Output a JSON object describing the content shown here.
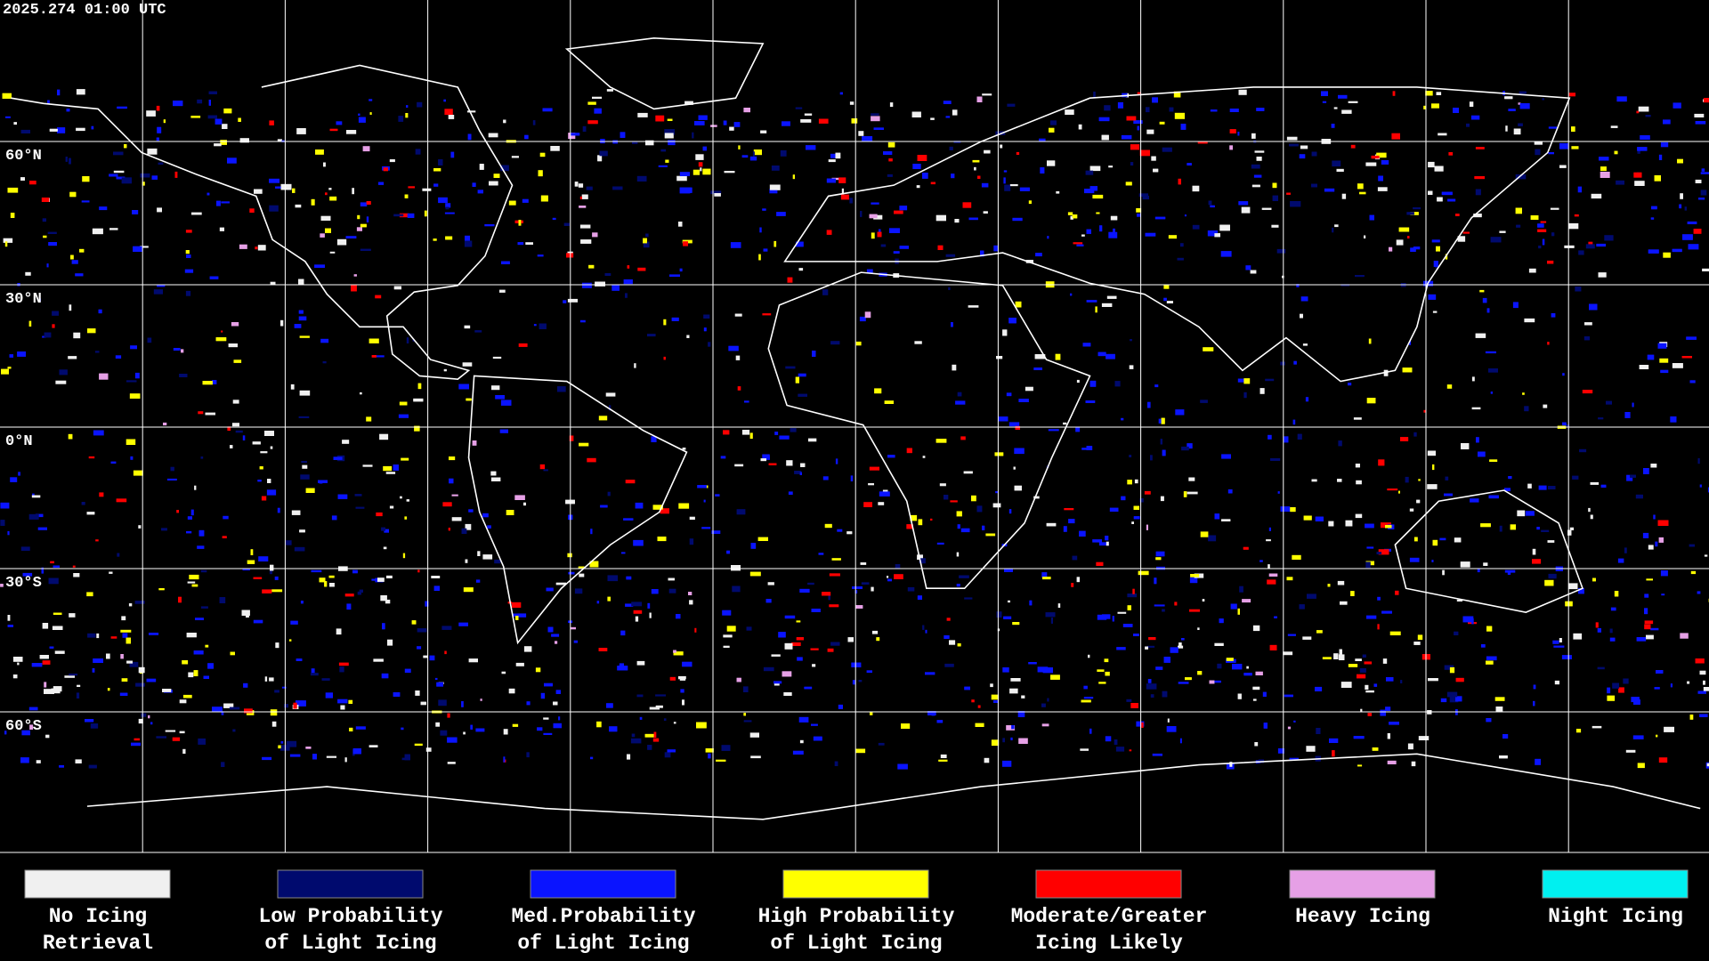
{
  "header": {
    "timestamp": "2025.274 01:00 UTC"
  },
  "map": {
    "lat_labels": [
      "60°N",
      "30°N",
      "0°N",
      "30°S",
      "60°S"
    ]
  },
  "legend": [
    {
      "lines": [
        "No Icing",
        "Retrieval"
      ],
      "color": "#f0f0f0"
    },
    {
      "lines": [
        "Low Probability",
        "of Light Icing"
      ],
      "color": "#000a6e"
    },
    {
      "lines": [
        "Med.Probability",
        "of Light Icing"
      ],
      "color": "#0a14ff"
    },
    {
      "lines": [
        "High Probability",
        "of Light Icing"
      ],
      "color": "#ffff00"
    },
    {
      "lines": [
        "Moderate/Greater",
        "Icing Likely"
      ],
      "color": "#ff0000"
    },
    {
      "lines": [
        "Heavy Icing"
      ],
      "color": "#e6a0e6"
    },
    {
      "lines": [
        "Night Icing"
      ],
      "color": "#00f0f0"
    }
  ]
}
